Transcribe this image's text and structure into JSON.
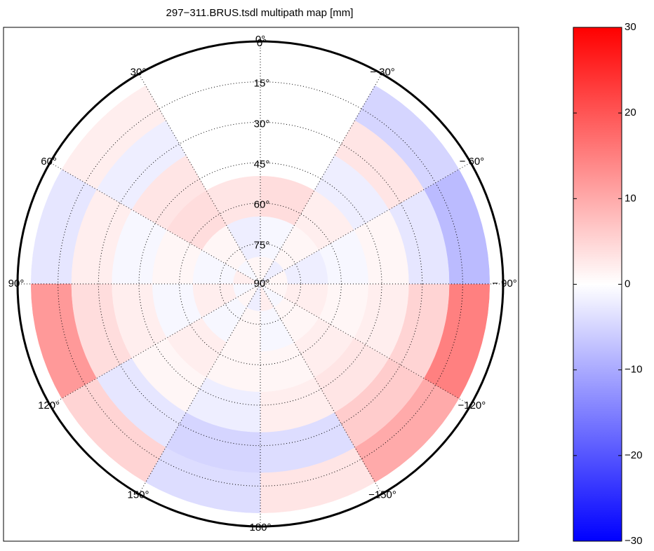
{
  "chart_data": {
    "type": "polar-heatmap",
    "title": "297−311.BRUS.tsdl multipath map [mm]",
    "az_bins": [
      -180,
      -150,
      -120,
      -90,
      -60,
      -30,
      0,
      30,
      60,
      90,
      120,
      150,
      180
    ],
    "el_bins": [
      5,
      20,
      35,
      50,
      65,
      80,
      90
    ],
    "values": [
      [
        3,
        10,
        15,
        -8,
        -5,
        null,
        null,
        2,
        -3,
        12,
        5,
        -4
      ],
      [
        -4,
        6,
        5,
        -3,
        3,
        null,
        null,
        -2,
        2,
        4,
        -3,
        -5
      ],
      [
        2,
        3,
        2,
        1,
        -2,
        null,
        null,
        3,
        -1,
        2,
        1,
        -2
      ],
      [
        1,
        2,
        1,
        -1,
        2,
        4,
        3,
        4,
        1,
        -1,
        2,
        1
      ],
      [
        -1,
        1,
        2,
        -2,
        1,
        -1,
        -2,
        1,
        -1,
        2,
        -1,
        1
      ],
      [
        2,
        -1,
        1,
        1,
        -2,
        1,
        1,
        -1,
        2,
        -1,
        1,
        -2
      ]
    ],
    "az_ticks": [
      {
        "value": 0,
        "label": "0°"
      },
      {
        "value": 30,
        "label": "30°"
      },
      {
        "value": 60,
        "label": "60°"
      },
      {
        "value": 90,
        "label": "90°"
      },
      {
        "value": 120,
        "label": "120°"
      },
      {
        "value": 150,
        "label": "150°"
      },
      {
        "value": 180,
        "label": "180°"
      },
      {
        "value": -150,
        "label": "−150°"
      },
      {
        "value": -120,
        "label": "−120°"
      },
      {
        "value": -90,
        "label": "− 90°"
      },
      {
        "value": -60,
        "label": "− 60°"
      },
      {
        "value": -30,
        "label": "− 30°"
      }
    ],
    "el_ticks": [
      {
        "value": 0,
        "label": "0°"
      },
      {
        "value": 15,
        "label": "15°"
      },
      {
        "value": 30,
        "label": "30°"
      },
      {
        "value": 45,
        "label": "45°"
      },
      {
        "value": 60,
        "label": "60°"
      },
      {
        "value": 75,
        "label": "75°"
      },
      {
        "value": 90,
        "label": "90°"
      }
    ],
    "clim": [
      -30,
      30
    ],
    "colormap": [
      "#0000ff",
      "#ffffff",
      "#ff0000"
    ],
    "cticks": [
      {
        "value": -30,
        "label": "−30"
      },
      {
        "value": -20,
        "label": "−20"
      },
      {
        "value": -10,
        "label": "−10"
      },
      0,
      10,
      20,
      30
    ]
  }
}
